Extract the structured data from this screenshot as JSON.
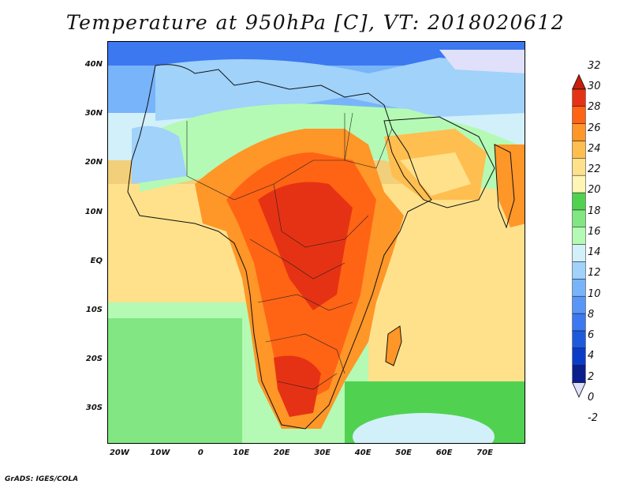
{
  "title": "Temperature at 950hPa [C], VT: 2018020612",
  "footer": "GrADS: IGES/COLA",
  "map": {
    "variable": "Temperature at 950hPa",
    "units": "C",
    "lon_range": [
      -23,
      80
    ],
    "lat_range": [
      -37,
      45
    ],
    "lat_ticks": [
      {
        "value": 40,
        "label": "40N"
      },
      {
        "value": 30,
        "label": "30N"
      },
      {
        "value": 20,
        "label": "20N"
      },
      {
        "value": 10,
        "label": "10N"
      },
      {
        "value": 0,
        "label": "EQ"
      },
      {
        "value": -10,
        "label": "10S"
      },
      {
        "value": -20,
        "label": "20S"
      },
      {
        "value": -30,
        "label": "30S"
      }
    ],
    "lon_ticks": [
      {
        "value": -20,
        "label": "20W"
      },
      {
        "value": -10,
        "label": "10W"
      },
      {
        "value": 0,
        "label": "0"
      },
      {
        "value": 10,
        "label": "10E"
      },
      {
        "value": 20,
        "label": "20E"
      },
      {
        "value": 30,
        "label": "30E"
      },
      {
        "value": 40,
        "label": "40E"
      },
      {
        "value": 50,
        "label": "50E"
      },
      {
        "value": 60,
        "label": "60E"
      },
      {
        "value": 70,
        "label": "70E"
      }
    ]
  },
  "colorbar": {
    "labels": [
      "32",
      "30",
      "28",
      "26",
      "24",
      "22",
      "20",
      "18",
      "16",
      "14",
      "12",
      "10",
      "8",
      "6",
      "4",
      "2",
      "0",
      "-2"
    ],
    "colors": [
      "#e0e0fa",
      "#0a1e8c",
      "#0a3cc8",
      "#1e5adc",
      "#3c78f0",
      "#5a96f5",
      "#78b4fa",
      "#a0d2fa",
      "#d2f0fa",
      "#b4fab4",
      "#82e682",
      "#50d250",
      "#fff5b4",
      "#ffe18c",
      "#ffbe50",
      "#ff9628",
      "#ff6414",
      "#e63214",
      "#c81e0a"
    ]
  }
}
